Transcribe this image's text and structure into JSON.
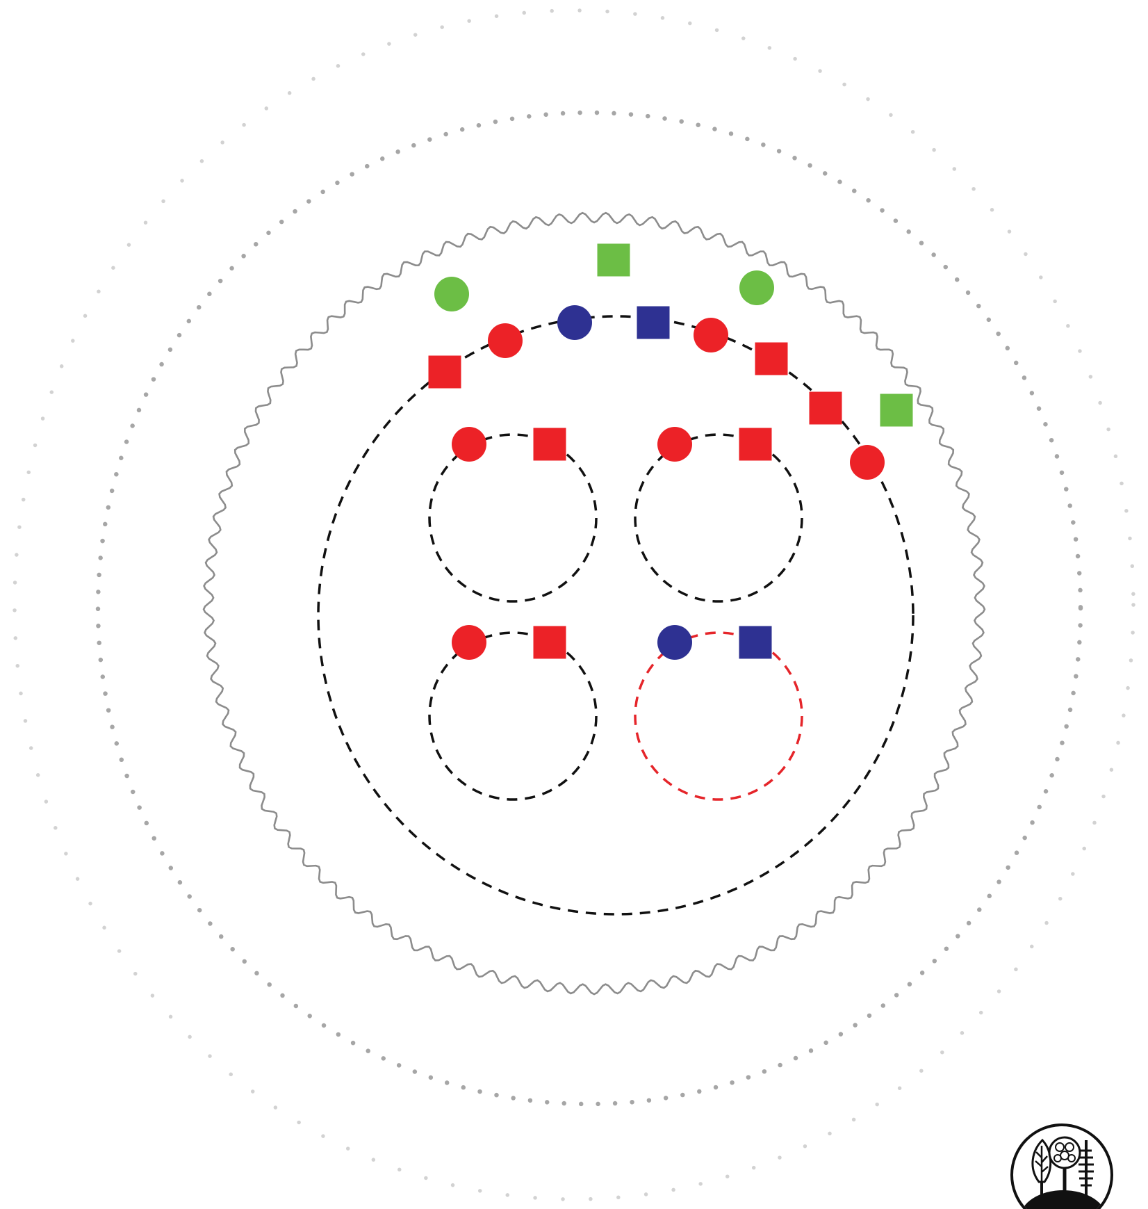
{
  "colors": {
    "background": "#ffffff",
    "outer_dotted_ring": "#d2d2d2",
    "middle_dotted_ring": "#a6a6a6",
    "wavy_boundary": "#8c8c8c",
    "dashed_black": "#111111",
    "dashed_red": "#e5252a",
    "red": "#ec2227",
    "blue": "#2e3192",
    "green": "#6cbe45"
  },
  "diagram": {
    "rings": [
      {
        "name": "outer-dotted-ring",
        "style": "dotted",
        "color_key": "outer_dotted_ring"
      },
      {
        "name": "middle-dotted-ring",
        "style": "dotted",
        "color_key": "middle_dotted_ring"
      },
      {
        "name": "wavy-boundary-ring",
        "style": "wavy",
        "color_key": "wavy_boundary"
      },
      {
        "name": "large-dashed-circle",
        "style": "dashed",
        "color_key": "dashed_black"
      }
    ],
    "sub_circles": [
      {
        "name": "sub-circle-top-left",
        "color_key": "dashed_black",
        "markers": [
          "red-circle",
          "red-square"
        ]
      },
      {
        "name": "sub-circle-top-right",
        "color_key": "dashed_black",
        "markers": [
          "red-circle",
          "red-square"
        ]
      },
      {
        "name": "sub-circle-bottom-left",
        "color_key": "dashed_black",
        "markers": [
          "red-circle",
          "red-square"
        ]
      },
      {
        "name": "sub-circle-bottom-right",
        "color_key": "dashed_red",
        "markers": [
          "blue-circle",
          "blue-square"
        ]
      }
    ],
    "large_circle_markers": [
      "red-square",
      "red-circle",
      "blue-circle",
      "blue-square",
      "red-circle",
      "red-square",
      "red-square",
      "red-circle"
    ],
    "outside_markers": [
      "green-circle",
      "green-square",
      "green-circle",
      "green-square"
    ],
    "logo": {
      "name": "tree-logo",
      "icon": "trees-on-hill-logo"
    }
  }
}
